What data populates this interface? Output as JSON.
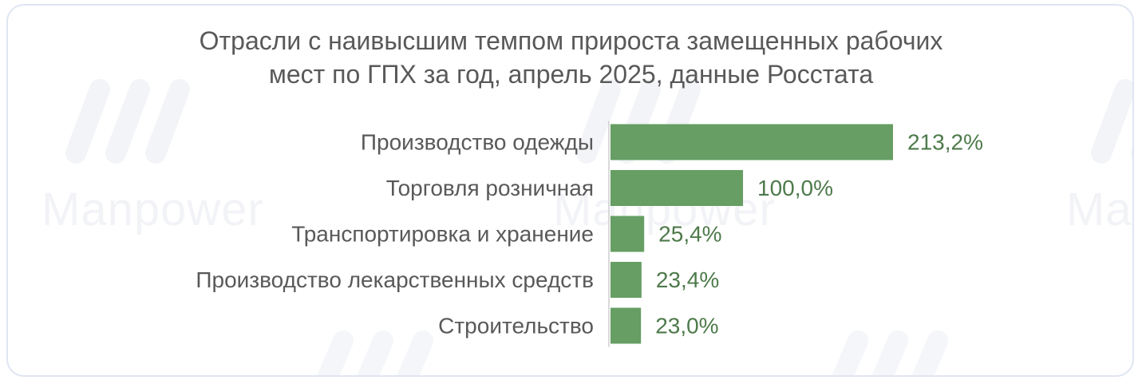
{
  "watermark": {
    "brand_text": "Manpower"
  },
  "chart_data": {
    "type": "bar",
    "orientation": "horizontal",
    "title_lines": [
      "Отрасли с наивысшим темпом прироста замещенных рабочих",
      "мест по ГПХ за год, апрель 2025, данные Росстата"
    ],
    "categories": [
      "Производство одежды",
      "Торговля розничная",
      "Транспортировка и хранение",
      "Производство лекарственных средств",
      "Строительство"
    ],
    "values": [
      213.2,
      100.0,
      25.4,
      23.4,
      23.0
    ],
    "value_labels": [
      "213,2%",
      "100,0%",
      "25,4%",
      "23,4%",
      "23,0%"
    ],
    "xlim": [
      0,
      213.2
    ],
    "grid": false,
    "legend": "none",
    "colors": {
      "bar": "#669e63",
      "value_label": "#4e7a4b",
      "category_label": "#595959",
      "axis": "#d9d9d9"
    }
  }
}
